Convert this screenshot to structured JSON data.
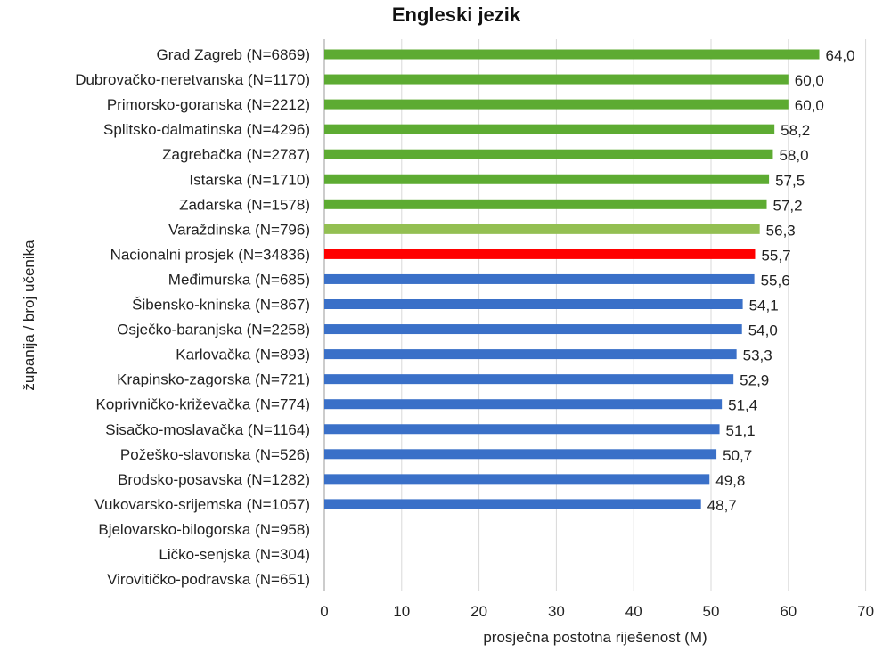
{
  "chart_data": {
    "type": "bar",
    "orientation": "horizontal",
    "title": "Engleski jezik",
    "xlabel": "prosječna postotna riješenost (M)",
    "ylabel": "županija / broj učenika",
    "xlim": [
      0,
      70
    ],
    "xticks": [
      0,
      10,
      20,
      30,
      40,
      50,
      60,
      70
    ],
    "grid": true,
    "categories": [
      "Grad Zagreb (N=6869)",
      "Dubrovačko-neretvanska (N=1170)",
      "Primorsko-goranska (N=2212)",
      "Splitsko-dalmatinska (N=4296)",
      "Zagrebačka (N=2787)",
      "Istarska (N=1710)",
      "Zadarska (N=1578)",
      "Varaždinska (N=796)",
      "Nacionalni prosjek (N=34836)",
      "Međimurska (N=685)",
      "Šibensko-kninska (N=867)",
      "Osječko-baranjska (N=2258)",
      "Karlovačka (N=893)",
      "Krapinsko-zagorska (N=721)",
      "Koprivničko-križevačka (N=774)",
      "Sisačko-moslavačka (N=1164)",
      "Požeško-slavonska (N=526)",
      "Brodsko-posavska (N=1282)",
      "Vukovarsko-srijemska (N=1057)",
      "Bjelovarsko-bilogorska (N=958)",
      "Ličko-senjska (N=304)",
      "Virovitičko-podravska (N=651)"
    ],
    "values": [
      64.0,
      60.0,
      60.0,
      58.2,
      58.0,
      57.5,
      57.2,
      56.3,
      55.7,
      55.6,
      54.1,
      54.0,
      53.3,
      52.9,
      51.4,
      51.1,
      50.7,
      49.8,
      48.7,
      null,
      null,
      null
    ],
    "value_labels": [
      "64,0",
      "60,0",
      "60,0",
      "58,2",
      "58,0",
      "57,5",
      "57,2",
      "56,3",
      "55,7",
      "55,6",
      "54,1",
      "54,0",
      "53,3",
      "52,9",
      "51,4",
      "51,1",
      "50,7",
      "49,8",
      "48,7",
      "",
      "",
      ""
    ],
    "bar_colors": [
      "#5dab32",
      "#5dab32",
      "#5dab32",
      "#5dab32",
      "#5dab32",
      "#5dab32",
      "#5dab32",
      "#93bf52",
      "#ff0000",
      "#3a70c8",
      "#3a70c8",
      "#3a70c8",
      "#3a70c8",
      "#3a70c8",
      "#3a70c8",
      "#3a70c8",
      "#3a70c8",
      "#3a70c8",
      "#3a70c8",
      "#3a70c8",
      "#3a70c8",
      "#3a70c8"
    ],
    "label_colors": [
      "#222222",
      "#222222",
      "#222222",
      "#222222",
      "#222222",
      "#222222",
      "#222222",
      "#222222",
      "#e00000",
      "#222222",
      "#222222",
      "#222222",
      "#222222",
      "#222222",
      "#222222",
      "#222222",
      "#222222",
      "#222222",
      "#222222",
      "#222222",
      "#222222",
      "#222222"
    ]
  }
}
